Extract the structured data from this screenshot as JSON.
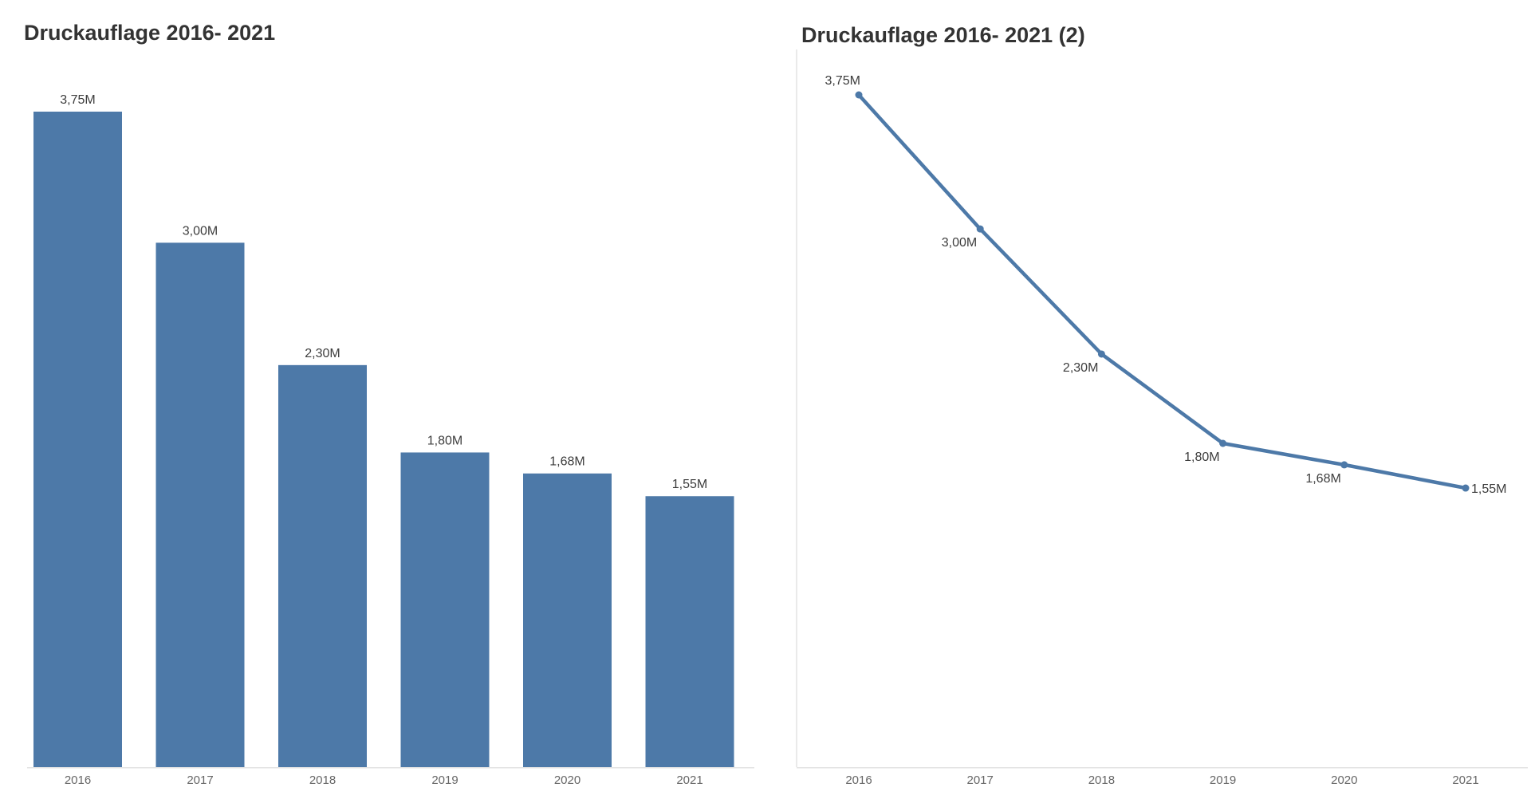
{
  "colors": {
    "accent_blue": "#4d79a8",
    "title_text": "#333333",
    "value_label_text": "#3d3d3d",
    "axis_tick_text": "#666666",
    "axis_line": "#e3e3e3",
    "background": "#ffffff"
  },
  "chart_data": [
    {
      "type": "bar",
      "title": "Druckauflage 2016- 2021",
      "categories": [
        "2016",
        "2017",
        "2018",
        "2019",
        "2020",
        "2021"
      ],
      "values": [
        3.75,
        3.0,
        2.3,
        1.8,
        1.68,
        1.55
      ],
      "value_labels": [
        "3,75M",
        "3,00M",
        "2,30M",
        "1,80M",
        "1,68M",
        "1,55M"
      ],
      "unit": "M",
      "xlabel": "",
      "ylabel": "",
      "ylim": [
        0,
        4
      ],
      "grid": false,
      "legend": "none",
      "bar_color": "#4d79a8",
      "label_position": "above-bar"
    },
    {
      "type": "line",
      "title": "Druckauflage 2016- 2021 (2)",
      "categories": [
        "2016",
        "2017",
        "2018",
        "2019",
        "2020",
        "2021"
      ],
      "values": [
        3.75,
        3.0,
        2.3,
        1.8,
        1.68,
        1.55
      ],
      "value_labels": [
        "3,75M",
        "3,00M",
        "2,30M",
        "1,80M",
        "1,68M",
        "1,55M"
      ],
      "unit": "M",
      "xlabel": "",
      "ylabel": "",
      "ylim": [
        0,
        4
      ],
      "grid": false,
      "legend": "none",
      "line_color": "#4d79a8",
      "marker": "circle"
    }
  ]
}
